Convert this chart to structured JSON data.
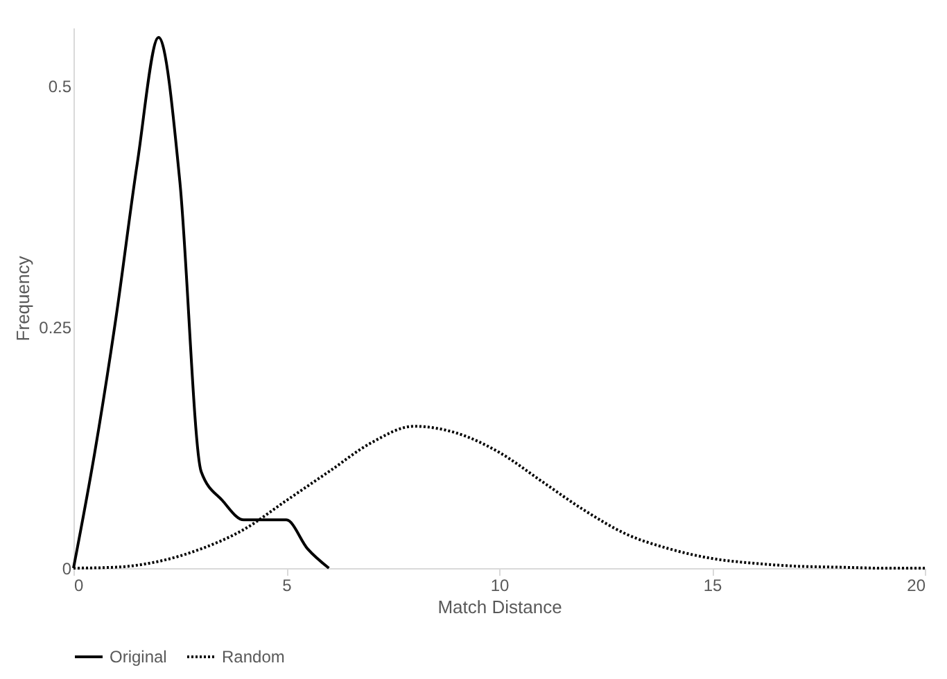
{
  "chart_data": {
    "type": "line",
    "xlabel": "Match Distance",
    "ylabel": "Frequency",
    "xlim": [
      0,
      20
    ],
    "xticks": [
      0,
      5,
      10,
      15,
      20
    ],
    "ylim": [
      0,
      0.56
    ],
    "yticks": [
      0,
      0.25,
      0.5
    ],
    "grid": false,
    "legend": "bottom",
    "marker": "none",
    "series": [
      {
        "name": "Original",
        "color": "#000000",
        "line_style": "solid",
        "x": [
          0,
          0.5,
          1,
          1.5,
          2,
          2.5,
          3,
          3.5,
          4,
          4.5,
          5,
          5.5,
          6
        ],
        "values": [
          0,
          0.12,
          0.26,
          0.42,
          0.55,
          0.4,
          0.1,
          0.07,
          0.05,
          0.05,
          0.05,
          0.02,
          0
        ]
      },
      {
        "name": "Random",
        "color": "#000000",
        "line_style": "dotted",
        "x": [
          0,
          1,
          2,
          3,
          4,
          5,
          6,
          7,
          8,
          9,
          10,
          11,
          12,
          13,
          14,
          15,
          16,
          17,
          18,
          19,
          20
        ],
        "values": [
          0,
          0.001,
          0.007,
          0.02,
          0.04,
          0.07,
          0.1,
          0.13,
          0.147,
          0.14,
          0.12,
          0.09,
          0.06,
          0.035,
          0.02,
          0.01,
          0.005,
          0.002,
          0.001,
          0,
          0
        ]
      }
    ]
  }
}
